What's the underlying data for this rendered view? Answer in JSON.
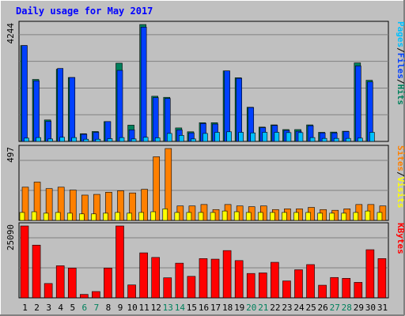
{
  "title": "Daily usage for May 2017",
  "colors": {
    "hits": "#00805c",
    "files": "#0040ff",
    "pages": "#00c0ff",
    "visits": "#ffff00",
    "sites": "#ff8000",
    "kbytes": "#ff0000",
    "weekend_label": "#00805c",
    "weekday_label": "#000000",
    "title": "#0000ff",
    "panel_bg": "#c0c0c0"
  },
  "legends": {
    "top": [
      {
        "text": "Pages",
        "color": "#00c0ff"
      },
      {
        "text": "/",
        "color": "#000000"
      },
      {
        "text": "Files",
        "color": "#0040ff"
      },
      {
        "text": "/",
        "color": "#000000"
      },
      {
        "text": "Hits",
        "color": "#00805c"
      }
    ],
    "middle": [
      {
        "text": "Sites",
        "color": "#ff8000"
      },
      {
        "text": "/",
        "color": "#000000"
      },
      {
        "text": "Visits",
        "color": "#ffff00"
      }
    ],
    "bottom": [
      {
        "text": "KBytes",
        "color": "#ff0000"
      }
    ]
  },
  "chart_data": {
    "type": "bar",
    "title": "Daily usage for May 2017",
    "categories": [
      "1",
      "2",
      "3",
      "4",
      "5",
      "6",
      "7",
      "8",
      "9",
      "10",
      "11",
      "12",
      "13",
      "14",
      "15",
      "16",
      "17",
      "18",
      "19",
      "20",
      "21",
      "22",
      "23",
      "24",
      "25",
      "26",
      "27",
      "28",
      "29",
      "30",
      "31"
    ],
    "weekend_days": [
      "6",
      "7",
      "13",
      "14",
      "20",
      "21",
      "27",
      "28"
    ],
    "panels": [
      {
        "name": "hits-files-pages",
        "ymax_label": "4244",
        "ylim": [
          0,
          4244
        ],
        "series": [
          {
            "name": "Hits",
            "values": [
              3480,
              2250,
              780,
              2620,
              2320,
              280,
              360,
              720,
              2840,
              590,
              4244,
              1640,
              1600,
              490,
              350,
              680,
              680,
              2560,
              2310,
              1240,
              520,
              600,
              430,
              430,
              600,
              330,
              340,
              370,
              2850,
              2220,
              0
            ]
          },
          {
            "name": "Files",
            "values": [
              3480,
              2200,
              730,
              2650,
              2320,
              260,
              330,
              720,
              2580,
              420,
              4150,
              1590,
              1560,
              420,
              310,
              650,
              630,
              2560,
              2290,
              1230,
              500,
              580,
              400,
              370,
              570,
              310,
              310,
              360,
              2740,
              2160,
              0
            ]
          },
          {
            "name": "Pages",
            "values": [
              120,
              140,
              90,
              150,
              140,
              80,
              80,
              100,
              140,
              90,
              150,
              130,
              290,
              220,
              90,
              290,
              330,
              350,
              330,
              310,
              330,
              330,
              320,
              320,
              140,
              110,
              110,
              110,
              120,
              330,
              0
            ]
          }
        ]
      },
      {
        "name": "sites-visits",
        "ymax_label": "497",
        "ylim": [
          0,
          497
        ],
        "series": [
          {
            "name": "Sites",
            "values": [
              230,
              265,
              220,
              230,
              210,
              175,
              180,
              195,
              205,
              190,
              215,
              440,
              497,
              100,
              100,
              110,
              75,
              110,
              100,
              95,
              100,
              75,
              80,
              80,
              90,
              75,
              70,
              80,
              110,
              110,
              100
            ]
          },
          {
            "name": "Visits",
            "values": [
              55,
              60,
              50,
              55,
              50,
              45,
              45,
              50,
              55,
              50,
              55,
              60,
              80,
              55,
              55,
              55,
              55,
              65,
              60,
              55,
              55,
              55,
              55,
              55,
              55,
              50,
              50,
              50,
              55,
              65,
              55
            ]
          }
        ]
      },
      {
        "name": "kbytes",
        "ymax_label": "25090",
        "ylim": [
          0,
          25090
        ],
        "series": [
          {
            "name": "KBytes",
            "values": [
              25090,
              18400,
              5000,
              11200,
              10400,
              1200,
              2200,
              10400,
              25090,
              4500,
              15700,
              14100,
              7000,
              12100,
              7500,
              13700,
              13500,
              16500,
              13000,
              8500,
              8700,
              12400,
              5900,
              9800,
              11600,
              4400,
              7100,
              6800,
              5400,
              16800,
              13700
            ]
          }
        ]
      }
    ]
  }
}
